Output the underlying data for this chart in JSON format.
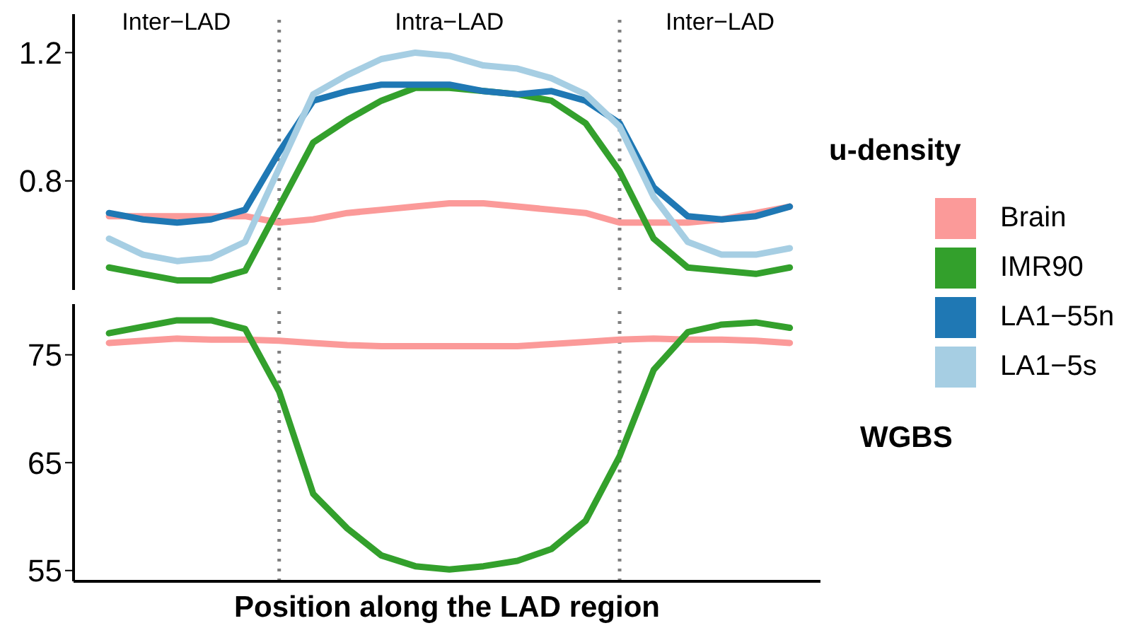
{
  "chart_data": [
    {
      "type": "line",
      "categories": [
        null,
        null,
        null,
        null,
        null,
        null,
        null,
        null,
        null,
        null,
        null,
        null,
        null,
        null,
        null,
        null,
        null,
        null,
        null,
        null,
        null
      ],
      "ylim": [
        0.46,
        1.32
      ],
      "yticks": [
        0.8,
        1.2
      ],
      "tick_labels": "y",
      "grid": false,
      "legend": "right",
      "legend_title": "u-density",
      "line_style": "solid",
      "marker": "none",
      "annotations": [
        "Inter−LAD",
        "Intra−LAD",
        "Inter−LAD"
      ],
      "series": [
        {
          "name": "Brain",
          "color": "#fb9a99",
          "values": [
            0.69,
            0.69,
            0.69,
            0.69,
            0.69,
            0.67,
            0.68,
            0.7,
            0.71,
            0.72,
            0.73,
            0.73,
            0.72,
            0.71,
            0.7,
            0.67,
            0.67,
            0.67,
            0.68,
            0.7,
            0.72
          ]
        },
        {
          "name": "IMR90",
          "color": "#33a02c",
          "values": [
            0.53,
            0.51,
            0.49,
            0.49,
            0.52,
            0.72,
            0.92,
            0.99,
            1.05,
            1.09,
            1.09,
            1.08,
            1.07,
            1.05,
            0.98,
            0.83,
            0.62,
            0.53,
            0.52,
            0.51,
            0.53
          ]
        },
        {
          "name": "LA1−55n",
          "color": "#1f78b4",
          "values": [
            0.7,
            0.68,
            0.67,
            0.68,
            0.71,
            0.89,
            1.05,
            1.08,
            1.1,
            1.1,
            1.1,
            1.08,
            1.07,
            1.08,
            1.05,
            0.98,
            0.78,
            0.69,
            0.68,
            0.69,
            0.72
          ]
        },
        {
          "name": "LA1−5s",
          "color": "#a6cee3",
          "values": [
            0.62,
            0.57,
            0.55,
            0.56,
            0.61,
            0.84,
            1.07,
            1.13,
            1.18,
            1.2,
            1.19,
            1.16,
            1.15,
            1.12,
            1.07,
            0.97,
            0.75,
            0.61,
            0.57,
            0.57,
            0.59
          ]
        }
      ]
    },
    {
      "type": "line",
      "categories": [
        null,
        null,
        null,
        null,
        null,
        null,
        null,
        null,
        null,
        null,
        null,
        null,
        null,
        null,
        null,
        null,
        null,
        null,
        null,
        null,
        null
      ],
      "ylim": [
        54,
        79.7
      ],
      "yticks": [
        55,
        65,
        75
      ],
      "tick_labels": "y",
      "grid": false,
      "legend_title": "WGBS",
      "xlabel": "Position along the LAD region",
      "line_style": "solid",
      "marker": "none",
      "series": [
        {
          "color": "#fb9a99",
          "values": [
            76.1,
            76.3,
            76.5,
            76.4,
            76.4,
            76.3,
            76.1,
            75.9,
            75.8,
            75.8,
            75.8,
            75.8,
            75.8,
            76.0,
            76.2,
            76.4,
            76.5,
            76.4,
            76.4,
            76.3,
            76.1
          ]
        },
        {
          "color": "#33a02c",
          "values": [
            77.0,
            77.6,
            78.2,
            78.2,
            77.4,
            71.6,
            62.1,
            58.9,
            56.4,
            55.4,
            55.1,
            55.4,
            55.9,
            57.0,
            59.6,
            65.6,
            73.6,
            77.1,
            77.8,
            78.0,
            77.5
          ]
        }
      ]
    }
  ]
}
